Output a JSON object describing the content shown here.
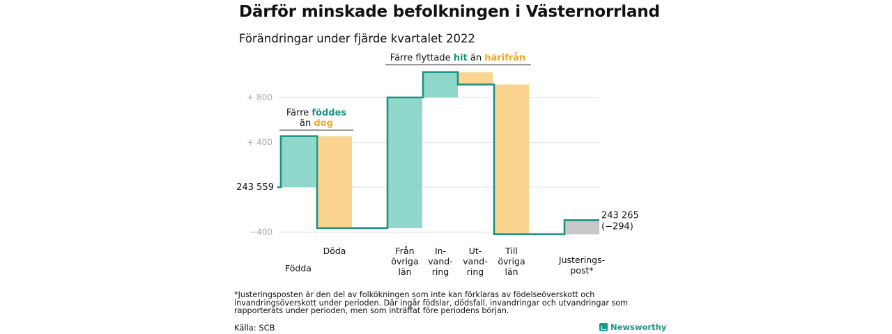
{
  "title": "Därför minskade befolkningen i Västernorrland",
  "subtitle": "Förändringar under fjärde kvartalet 2022",
  "footnote": "*Justeringsposten är den del av folkökningen som inte kan förklaras av födelseöverskott och invandringsöverskott under perioden. Där ingår födslar, dödsfall, invandringar och utvandringar som rapporterats under perioden, men som inträffat före periodens början.",
  "source": "Källa: SCB",
  "brand": "Newsworthy",
  "colors": {
    "teal_line": "#1a9384",
    "teal_fill": "#8fd6cb",
    "orange_fill": "#fad48f",
    "orange_text": "#f1a625",
    "teal_text": "#1a9384",
    "gray_fill": "#c8c8c8",
    "grid": "#dddddd",
    "tick_text": "#aaaaaa"
  },
  "chart_data": {
    "type": "waterfall",
    "baseline": 243559,
    "ticks": [
      {
        "value": 800,
        "label": "+ 800"
      },
      {
        "value": 400,
        "label": "+ 400"
      },
      {
        "value": 0,
        "label": ""
      },
      {
        "value": -400,
        "label": "−400"
      }
    ],
    "ylim": [
      -420,
      1050
    ],
    "start_label": "243 559",
    "end_label": "243 265",
    "end_change_label": "(−294)",
    "bars": [
      {
        "category": [
          "Födda"
        ],
        "from": 0,
        "to": 455,
        "kind": "teal"
      },
      {
        "category": [
          "Döda"
        ],
        "from": 455,
        "to": -365,
        "kind": "orange"
      },
      {
        "category": [
          "Från",
          "övriga",
          "län"
        ],
        "from": -365,
        "to": 800,
        "kind": "teal"
      },
      {
        "category": [
          "In-",
          "vand-",
          "ring"
        ],
        "from": 800,
        "to": 1025,
        "kind": "teal"
      },
      {
        "category": [
          "Ut-",
          "vand-",
          "ring"
        ],
        "from": 1025,
        "to": 915,
        "kind": "orange"
      },
      {
        "category": [
          "Till",
          "övriga",
          "län"
        ],
        "from": 915,
        "to": -420,
        "kind": "orange"
      },
      {
        "category": [
          "Justerings-",
          "post*"
        ],
        "from": -420,
        "to": -294,
        "kind": "gray"
      }
    ],
    "annotations": [
      {
        "lines": [
          [
            {
              "t": "Färre ",
              "c": "black"
            },
            {
              "t": "föddes",
              "c": "teal"
            }
          ],
          [
            {
              "t": "än ",
              "c": "black"
            },
            {
              "t": "dog",
              "c": "orange"
            }
          ]
        ],
        "bars": [
          0,
          1
        ]
      },
      {
        "lines": [
          [
            {
              "t": "Färre flyttade ",
              "c": "black"
            },
            {
              "t": "hit",
              "c": "teal"
            },
            {
              "t": " än ",
              "c": "black"
            },
            {
              "t": "härifrån",
              "c": "orange"
            }
          ]
        ],
        "bars": [
          2,
          5
        ]
      }
    ]
  }
}
